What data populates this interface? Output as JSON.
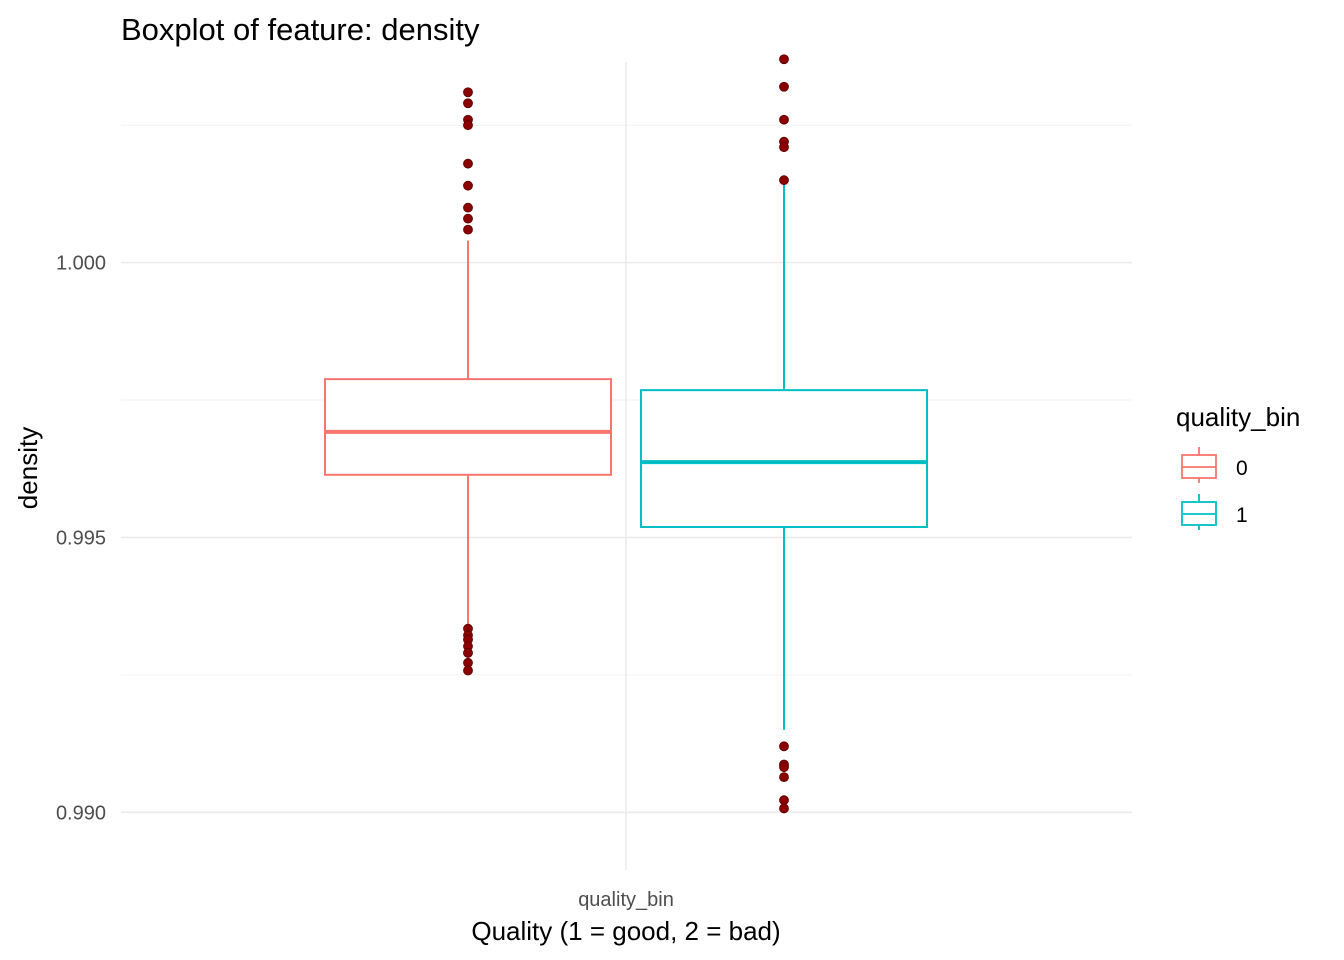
{
  "chart_data": {
    "type": "boxplot",
    "title": "Boxplot of feature: density",
    "xlabel": "Quality (1 = good, 2 = bad)",
    "ylabel": "density",
    "x_tick_label": "quality_bin",
    "ylim": [
      0.98895,
      1.00365
    ],
    "y_ticks": [
      0.99,
      0.995,
      1.0
    ],
    "y_tick_labels": [
      "0.990",
      "0.995",
      "1.000"
    ],
    "grid": true,
    "legend": {
      "title": "quality_bin",
      "position": "right"
    },
    "outlier_color": "#8b0000",
    "series": [
      {
        "name": "0",
        "color": "#f8766d",
        "whisker_low": 0.99258,
        "q1": 0.99614,
        "median": 0.99692,
        "q3": 0.99788,
        "whisker_high": 1.0004,
        "outliers": [
          1.0031,
          1.0029,
          1.0026,
          1.0025,
          1.0018,
          1.0014,
          1.001,
          1.0008,
          1.0006,
          0.99334,
          0.99322,
          0.99314,
          0.99302,
          0.9929,
          0.99272,
          0.99258
        ]
      },
      {
        "name": "1",
        "color": "#00bfc4",
        "whisker_low": 0.9915,
        "q1": 0.99519,
        "median": 0.99637,
        "q3": 0.99768,
        "whisker_high": 1.00143,
        "outliers": [
          1.0037,
          1.0032,
          1.0026,
          1.0022,
          1.0021,
          1.0015,
          0.9912,
          0.99087,
          0.99082,
          0.99064,
          0.99022,
          0.99007
        ]
      }
    ]
  }
}
